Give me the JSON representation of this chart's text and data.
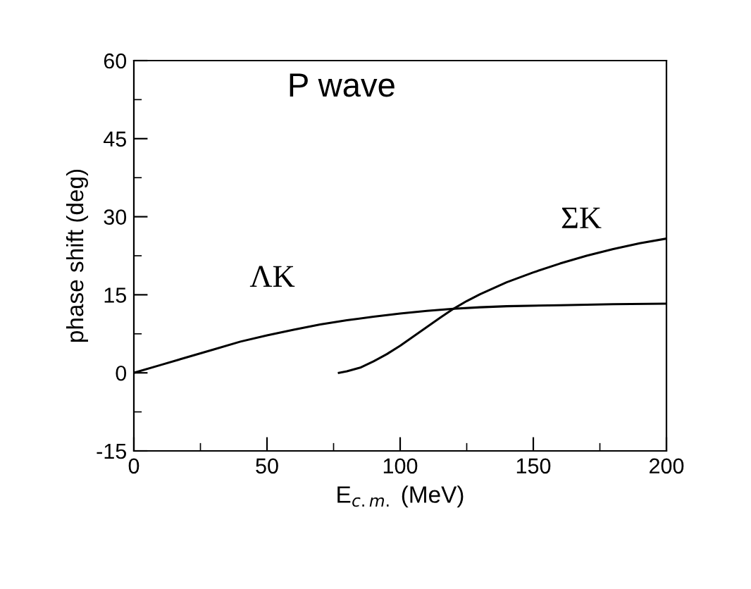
{
  "chart_data": {
    "type": "line",
    "title": "P wave",
    "xlabel": "E$_{c.m.}$ (MeV)",
    "ylabel": "phase shift (deg)",
    "xlim": [
      0,
      200
    ],
    "xticks": [
      0,
      50,
      100,
      150,
      200
    ],
    "ylim": [
      -15,
      60
    ],
    "yticks": [
      -15,
      0,
      15,
      30,
      45,
      60
    ],
    "grid": false,
    "legend": false,
    "marker": "none",
    "line_style": "solid",
    "series": [
      {
        "name": "ΛK",
        "color": "#000000",
        "x": [
          0,
          10,
          20,
          30,
          40,
          50,
          60,
          70,
          80,
          90,
          100,
          110,
          120,
          130,
          140,
          160,
          180,
          200
        ],
        "values": [
          0,
          1.5,
          3,
          4.5,
          6,
          7.2,
          8.3,
          9.3,
          10.1,
          10.8,
          11.4,
          11.9,
          12.3,
          12.6,
          12.8,
          13.0,
          13.2,
          13.3
        ]
      },
      {
        "name": "ΣK",
        "color": "#000000",
        "x": [
          77,
          80,
          85,
          90,
          95,
          100,
          105,
          110,
          115,
          120,
          125,
          130,
          140,
          150,
          160,
          170,
          180,
          190,
          200
        ],
        "values": [
          0,
          0.3,
          1,
          2.2,
          3.6,
          5.2,
          7,
          8.8,
          10.6,
          12.3,
          13.8,
          15.1,
          17.4,
          19.3,
          21,
          22.5,
          23.8,
          24.9,
          25.8
        ]
      }
    ]
  }
}
